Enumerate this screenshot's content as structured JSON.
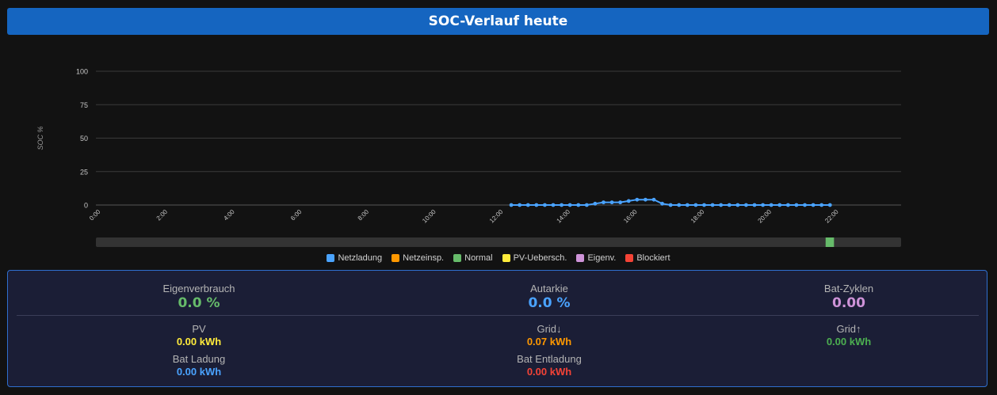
{
  "header": {
    "title": "SOC-Verlauf heute"
  },
  "colors": {
    "netzladung": "#4aa3ff",
    "netzeinsp": "#ff9800",
    "normal": "#66bb6a",
    "pv": "#ffeb3b",
    "eigenv": "#ce93d8",
    "blockiert": "#f44336"
  },
  "chart_data": {
    "type": "line",
    "ylabel": "SOC %",
    "ylim": [
      0,
      100
    ],
    "yticks": [
      "0",
      "25",
      "50",
      "75",
      "100"
    ],
    "xlim": [
      0,
      24
    ],
    "xticks": [
      {
        "h": 0,
        "label": "0:00"
      },
      {
        "h": 2,
        "label": "2:00"
      },
      {
        "h": 4,
        "label": "4:00"
      },
      {
        "h": 6,
        "label": "6:00"
      },
      {
        "h": 8,
        "label": "8:00"
      },
      {
        "h": 10,
        "label": "10:00"
      },
      {
        "h": 12,
        "label": "12:00"
      },
      {
        "h": 14,
        "label": "14:00"
      },
      {
        "h": 16,
        "label": "16:00"
      },
      {
        "h": 18,
        "label": "18:00"
      },
      {
        "h": 20,
        "label": "20:00"
      },
      {
        "h": 22,
        "label": "22:00"
      }
    ],
    "series": [
      {
        "name": "Netzladung",
        "color": "#4aa3ff",
        "x": [
          12.38,
          12.63,
          12.88,
          13.13,
          13.38,
          13.63,
          13.88,
          14.13,
          14.38,
          14.63,
          14.88,
          15.13,
          15.38,
          15.63,
          15.88,
          16.13,
          16.38,
          16.63,
          16.88,
          17.13,
          17.38,
          17.63,
          17.88,
          18.13,
          18.38,
          18.63,
          18.88,
          19.13,
          19.38,
          19.63,
          19.88,
          20.13,
          20.38,
          20.63,
          20.88,
          21.13,
          21.38,
          21.63,
          21.88
        ],
        "y": [
          0,
          0,
          0,
          0,
          0,
          0,
          0,
          0,
          0,
          0,
          1,
          2,
          2,
          2,
          3,
          4,
          4,
          4,
          1,
          0,
          0,
          0,
          0,
          0,
          0,
          0,
          0,
          0,
          0,
          0,
          0,
          0,
          0,
          0,
          0,
          0,
          0,
          0,
          0
        ]
      }
    ],
    "status_bar": {
      "segments": [
        {
          "from": 21.75,
          "to": 22.0,
          "state": "Normal",
          "color": "#66bb6a"
        }
      ]
    },
    "legend": [
      {
        "label": "Netzladung",
        "color": "#4aa3ff"
      },
      {
        "label": "Netzeinsp.",
        "color": "#ff9800"
      },
      {
        "label": "Normal",
        "color": "#66bb6a"
      },
      {
        "label": "PV-Uebersch.",
        "color": "#ffeb3b"
      },
      {
        "label": "Eigenv.",
        "color": "#ce93d8"
      },
      {
        "label": "Blockiert",
        "color": "#f44336"
      }
    ]
  },
  "stats": {
    "eigenverbrauch": {
      "label": "Eigenverbrauch",
      "value": "0.0 %"
    },
    "autarkie": {
      "label": "Autarkie",
      "value": "0.0 %"
    },
    "batzyklen": {
      "label": "Bat-Zyklen",
      "value": "0.00"
    },
    "pv": {
      "label": "PV",
      "value": "0.00 kWh"
    },
    "grid_down": {
      "label": "Grid↓",
      "value": "0.07 kWh"
    },
    "grid_up": {
      "label": "Grid↑",
      "value": "0.00 kWh"
    },
    "bat_ladung": {
      "label": "Bat Ladung",
      "value": "0.00 kWh"
    },
    "bat_entladung": {
      "label": "Bat Entladung",
      "value": "0.00 kWh"
    }
  }
}
